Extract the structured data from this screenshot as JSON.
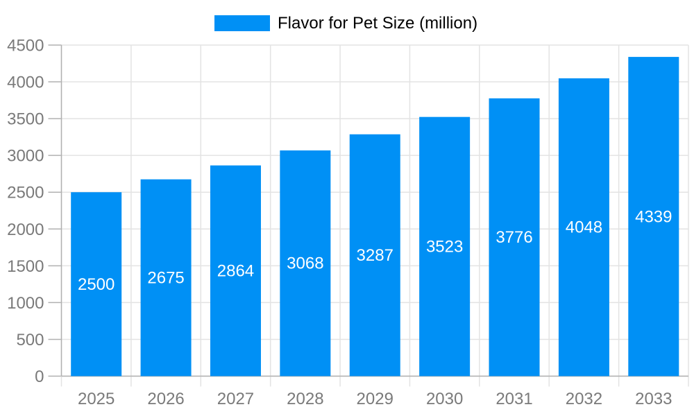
{
  "page": {
    "background_color": "#ffffff"
  },
  "chart_data": {
    "type": "bar",
    "title": "",
    "legend_label": "Flavor for Pet Size (million)",
    "legend_position": "top",
    "categories": [
      "2025",
      "2026",
      "2027",
      "2028",
      "2029",
      "2030",
      "2031",
      "2032",
      "2033"
    ],
    "values": [
      2500,
      2675,
      2864,
      3068,
      3287,
      3523,
      3776,
      4048,
      4339
    ],
    "xlabel": "",
    "ylabel": "",
    "ylim": [
      0,
      4500
    ],
    "yticks": [
      0,
      500,
      1000,
      1500,
      2000,
      2500,
      3000,
      3500,
      4000,
      4500
    ],
    "grid": "on",
    "bar_color": "#0090f5",
    "bar_value_label_color": "#ffffff",
    "axis_text_color": "#7a7a7a",
    "grid_color": "#e3e3e3",
    "axis_line_color": "#b0b0b0"
  }
}
